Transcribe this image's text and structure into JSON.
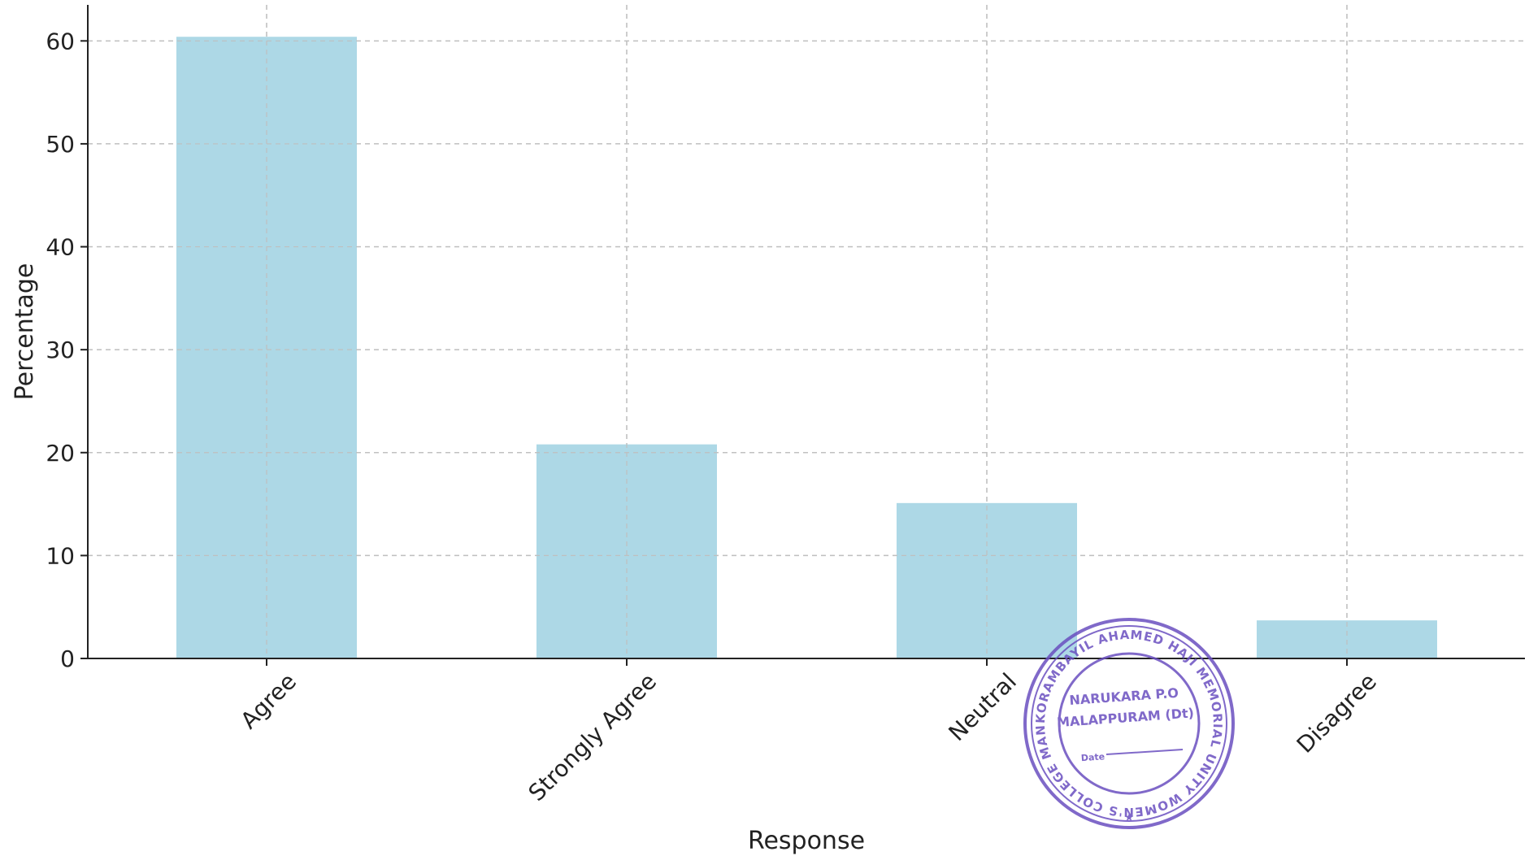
{
  "chart_data": {
    "type": "bar",
    "title": "",
    "xlabel": "Response",
    "ylabel": "Percentage",
    "categories": [
      "Agree",
      "Strongly Agree",
      "Neutral",
      "Disagree"
    ],
    "values": [
      60.4,
      20.8,
      15.1,
      3.7
    ],
    "ylim": [
      0,
      63.5
    ],
    "yticks": [
      0,
      10,
      20,
      30,
      40,
      50,
      60
    ],
    "grid": true,
    "bar_color": "#add8e6"
  },
  "stamp": {
    "outer_text": "KORAMBAYIL AHAMED HAJI MEMORIAL UNITY WOMEN'S COLLEGE MANJERI",
    "line1": "NARUKARA P.O",
    "line2": "MALAPPURAM (Dt)",
    "date_label": "Date",
    "color": "#6a4fc0"
  }
}
